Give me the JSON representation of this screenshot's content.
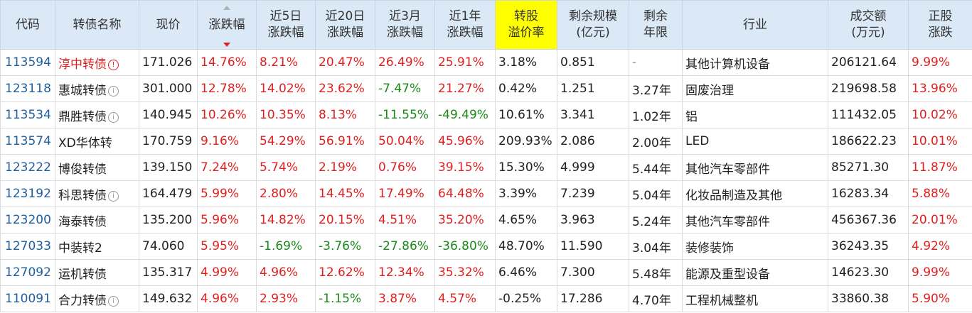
{
  "headers": [
    {
      "key": "code",
      "lines": [
        "代码"
      ]
    },
    {
      "key": "name",
      "lines": [
        "转债名称"
      ]
    },
    {
      "key": "price",
      "lines": [
        "现价"
      ]
    },
    {
      "key": "change",
      "lines": [
        "涨跌幅"
      ],
      "sorted": "desc"
    },
    {
      "key": "chg5",
      "lines": [
        "近5日",
        "涨跌幅"
      ]
    },
    {
      "key": "chg20",
      "lines": [
        "近20日",
        "涨跌幅"
      ]
    },
    {
      "key": "chg3m",
      "lines": [
        "近3月",
        "涨跌幅"
      ]
    },
    {
      "key": "chg1y",
      "lines": [
        "近1年",
        "涨跌幅"
      ]
    },
    {
      "key": "premium",
      "lines": [
        "转股",
        "溢价率"
      ],
      "highlight": true
    },
    {
      "key": "remaining",
      "lines": [
        "剩余规模",
        "(亿元)"
      ]
    },
    {
      "key": "years",
      "lines": [
        "剩余",
        "年限"
      ]
    },
    {
      "key": "industry",
      "lines": [
        "行业"
      ]
    },
    {
      "key": "volume",
      "lines": [
        "成交额",
        "(万元)"
      ]
    },
    {
      "key": "stockchg",
      "lines": [
        "正股",
        "涨跌"
      ]
    }
  ],
  "highlight_color": "#ffff00",
  "up_color": "#e02020",
  "down_color": "#1a8a1a",
  "rows": [
    {
      "code": "113594",
      "name": "淳中转债",
      "name_red": true,
      "info_icon": "red",
      "price": "171.026",
      "change": "14.76%",
      "chg5": "8.21%",
      "chg20": "20.47%",
      "chg3m": "26.49%",
      "chg1y": "25.91%",
      "premium": "3.18%",
      "remaining": "0.851",
      "years": "-",
      "industry": "其他计算机设备",
      "volume": "206121.64",
      "stockchg": "9.99%"
    },
    {
      "code": "123118",
      "name": "惠城转债",
      "info_icon": "grey",
      "price": "301.000",
      "change": "12.78%",
      "chg5": "14.02%",
      "chg20": "23.62%",
      "chg3m": "-7.47%",
      "chg1y": "21.27%",
      "premium": "0.42%",
      "remaining": "1.251",
      "years": "3.27年",
      "industry": "固废治理",
      "volume": "219698.58",
      "stockchg": "13.96%"
    },
    {
      "code": "113534",
      "name": "鼎胜转债",
      "info_icon": "grey",
      "price": "140.945",
      "change": "10.26%",
      "chg5": "10.35%",
      "chg20": "8.13%",
      "chg3m": "-11.55%",
      "chg1y": "-49.49%",
      "premium": "10.61%",
      "remaining": "3.341",
      "years": "1.02年",
      "industry": "铝",
      "volume": "111432.05",
      "stockchg": "10.02%"
    },
    {
      "code": "113574",
      "name": "XD华体转",
      "info_icon": "",
      "price": "170.759",
      "change": "9.16%",
      "chg5": "54.29%",
      "chg20": "56.91%",
      "chg3m": "50.04%",
      "chg1y": "45.96%",
      "premium": "209.93%",
      "remaining": "2.086",
      "years": "2.00年",
      "industry": "LED",
      "volume": "186622.23",
      "stockchg": "10.01%"
    },
    {
      "code": "123222",
      "name": "博俊转债",
      "info_icon": "",
      "price": "139.150",
      "change": "7.24%",
      "chg5": "5.74%",
      "chg20": "2.19%",
      "chg3m": "0.76%",
      "chg1y": "39.15%",
      "premium": "15.30%",
      "remaining": "4.999",
      "years": "5.44年",
      "industry": "其他汽车零部件",
      "volume": "85271.30",
      "stockchg": "11.87%"
    },
    {
      "code": "123192",
      "name": "科思转债",
      "info_icon": "grey",
      "price": "164.479",
      "change": "5.99%",
      "chg5": "2.80%",
      "chg20": "14.45%",
      "chg3m": "17.49%",
      "chg1y": "64.48%",
      "premium": "3.39%",
      "remaining": "7.239",
      "years": "5.04年",
      "industry": "化妆品制造及其他",
      "volume": "16283.34",
      "stockchg": "5.88%"
    },
    {
      "code": "123200",
      "name": "海泰转债",
      "info_icon": "",
      "price": "135.200",
      "change": "5.96%",
      "chg5": "14.82%",
      "chg20": "20.15%",
      "chg3m": "4.51%",
      "chg1y": "35.20%",
      "premium": "4.65%",
      "remaining": "3.963",
      "years": "5.24年",
      "industry": "其他汽车零部件",
      "volume": "456367.36",
      "stockchg": "20.01%"
    },
    {
      "code": "127033",
      "name": "中装转2",
      "info_icon": "",
      "price": "74.060",
      "change": "5.95%",
      "chg5": "-1.69%",
      "chg20": "-3.76%",
      "chg3m": "-27.86%",
      "chg1y": "-36.80%",
      "premium": "48.70%",
      "remaining": "11.590",
      "years": "3.04年",
      "industry": "装修装饰",
      "volume": "36243.35",
      "stockchg": "4.92%"
    },
    {
      "code": "127092",
      "name": "运机转债",
      "info_icon": "",
      "price": "135.317",
      "change": "4.99%",
      "chg5": "4.96%",
      "chg20": "12.62%",
      "chg3m": "12.34%",
      "chg1y": "35.32%",
      "premium": "6.46%",
      "remaining": "7.300",
      "years": "5.48年",
      "industry": "能源及重型设备",
      "volume": "14623.30",
      "stockchg": "9.99%"
    },
    {
      "code": "110091",
      "name": "合力转债",
      "info_icon": "grey",
      "price": "149.632",
      "change": "4.96%",
      "chg5": "2.93%",
      "chg20": "-1.15%",
      "chg3m": "3.87%",
      "chg1y": "4.57%",
      "premium": "-0.25%",
      "remaining": "17.286",
      "years": "4.70年",
      "industry": "工程机械整机",
      "volume": "33860.38",
      "stockchg": "5.90%"
    }
  ]
}
